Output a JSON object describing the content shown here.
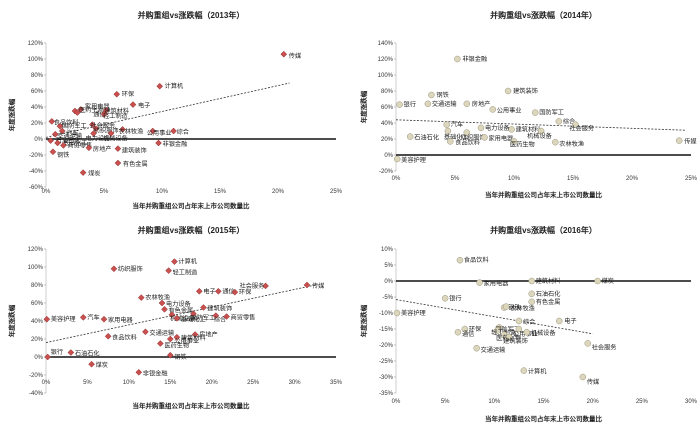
{
  "chart_data": [
    {
      "type": "scatter",
      "title": "并购重组vs涨跌幅（2013年）",
      "xlabel": "当年并购重组公司占年末上市公司数量比",
      "ylabel": "年度涨跌幅",
      "xlim": [
        0,
        0.25
      ],
      "ylim": [
        -0.6,
        1.2
      ],
      "xticks": [
        0,
        0.05,
        0.1,
        0.15,
        0.2,
        0.25
      ],
      "xtick_labels": [
        "0%",
        "5%",
        "10%",
        "15%",
        "20%",
        "25%"
      ],
      "yticks": [
        -0.6,
        -0.4,
        -0.2,
        0,
        0.2,
        0.4,
        0.6,
        0.8,
        1.0,
        1.2
      ],
      "ytick_labels": [
        "-60%",
        "-40%",
        "-20%",
        "0%",
        "20%",
        "40%",
        "60%",
        "80%",
        "100%",
        "120%"
      ],
      "marker": "diamond",
      "marker_color": "#c9504f",
      "trendline": [
        [
          0.0,
          0.02
        ],
        [
          0.21,
          0.7
        ]
      ],
      "points": [
        {
          "label": "传媒",
          "x": 0.205,
          "y": 1.06
        },
        {
          "label": "计算机",
          "x": 0.098,
          "y": 0.66
        },
        {
          "label": "环保",
          "x": 0.061,
          "y": 0.56
        },
        {
          "label": "电子",
          "x": 0.075,
          "y": 0.43
        },
        {
          "label": "家用电器",
          "x": 0.03,
          "y": 0.37
        },
        {
          "label": "医药生物",
          "x": 0.025,
          "y": 0.35
        },
        {
          "label": "通信",
          "x": 0.027,
          "y": 0.33
        },
        {
          "label": "建筑材料",
          "x": 0.052,
          "y": 0.36
        },
        {
          "label": "轻工制造",
          "x": 0.05,
          "y": 0.31
        },
        {
          "label": "食品饮料",
          "x": 0.005,
          "y": 0.22
        },
        {
          "label": "国防军工",
          "x": 0.012,
          "y": 0.16
        },
        {
          "label": "汽车",
          "x": 0.014,
          "y": 0.1
        },
        {
          "label": "交通运输",
          "x": 0.008,
          "y": 0.06
        },
        {
          "label": "社会服务",
          "x": 0.04,
          "y": 0.18
        },
        {
          "label": "纺织服饰",
          "x": 0.043,
          "y": 0.13
        },
        {
          "label": "农林牧渔",
          "x": 0.066,
          "y": 0.12
        },
        {
          "label": "公用事业",
          "x": 0.092,
          "y": 0.1
        },
        {
          "label": "综合",
          "x": 0.11,
          "y": 0.1
        },
        {
          "label": "电力设备",
          "x": 0.041,
          "y": 0.07
        },
        {
          "label": "机械设备",
          "x": 0.056,
          "y": 0.07
        },
        {
          "label": "石油石化",
          "x": 0.004,
          "y": -0.02
        },
        {
          "label": "基础化工",
          "x": 0.01,
          "y": -0.05
        },
        {
          "label": "商贸零售",
          "x": 0.015,
          "y": -0.08
        },
        {
          "label": "钢铁",
          "x": 0.006,
          "y": -0.16
        },
        {
          "label": "非银金融",
          "x": 0.097,
          "y": -0.05
        },
        {
          "label": "房地产",
          "x": 0.037,
          "y": -0.11
        },
        {
          "label": "建筑装饰",
          "x": 0.062,
          "y": -0.12
        },
        {
          "label": "有色金属",
          "x": 0.062,
          "y": -0.3
        },
        {
          "label": "煤炭",
          "x": 0.032,
          "y": -0.42
        }
      ]
    },
    {
      "type": "scatter",
      "title": "并购重组vs涨跌幅（2014年）",
      "xlabel": "当年并购重组公司占年末上市公司数量比",
      "ylabel": "年度涨跌幅",
      "xlim": [
        0,
        0.25
      ],
      "ylim": [
        -0.2,
        1.4
      ],
      "xticks": [
        0,
        0.05,
        0.1,
        0.15,
        0.2,
        0.25
      ],
      "xtick_labels": [
        "0%",
        "5%",
        "10%",
        "15%",
        "20%",
        "25%"
      ],
      "yticks": [
        -0.2,
        0,
        0.2,
        0.4,
        0.6,
        0.8,
        1.0,
        1.2,
        1.4
      ],
      "ytick_labels": [
        "-20%",
        "0%",
        "20%",
        "40%",
        "60%",
        "80%",
        "100%",
        "120%",
        "140%"
      ],
      "marker": "circle",
      "marker_color": "#dcd6bd",
      "trendline": [
        [
          0.0,
          0.44
        ],
        [
          0.245,
          0.31
        ]
      ],
      "points": [
        {
          "label": "非银金融",
          "x": 0.052,
          "y": 1.2
        },
        {
          "label": "建筑装饰",
          "x": 0.095,
          "y": 0.8
        },
        {
          "label": "钢铁",
          "x": 0.03,
          "y": 0.75
        },
        {
          "label": "银行",
          "x": 0.003,
          "y": 0.63
        },
        {
          "label": "交通运输",
          "x": 0.027,
          "y": 0.64
        },
        {
          "label": "房地产",
          "x": 0.06,
          "y": 0.64
        },
        {
          "label": "公用事业",
          "x": 0.082,
          "y": 0.57
        },
        {
          "label": "国防军工",
          "x": 0.118,
          "y": 0.53
        },
        {
          "label": "综合",
          "x": 0.138,
          "y": 0.42
        },
        {
          "label": "汽车",
          "x": 0.043,
          "y": 0.38
        },
        {
          "label": "社会服务",
          "x": 0.152,
          "y": 0.38
        },
        {
          "label": "电力设备",
          "x": 0.072,
          "y": 0.34
        },
        {
          "label": "建筑材料",
          "x": 0.098,
          "y": 0.32
        },
        {
          "label": "基础化工",
          "x": 0.044,
          "y": 0.3
        },
        {
          "label": "机械设备",
          "x": 0.123,
          "y": 0.3
        },
        {
          "label": "纺织服饰",
          "x": 0.06,
          "y": 0.28
        },
        {
          "label": "石油石化",
          "x": 0.012,
          "y": 0.23
        },
        {
          "label": "家用电器",
          "x": 0.075,
          "y": 0.22
        },
        {
          "label": "食品饮料",
          "x": 0.046,
          "y": 0.17
        },
        {
          "label": "医药生物",
          "x": 0.1,
          "y": 0.17
        },
        {
          "label": "农林牧渔",
          "x": 0.135,
          "y": 0.16
        },
        {
          "label": "传媒",
          "x": 0.24,
          "y": 0.18
        },
        {
          "label": "美容护理",
          "x": 0.001,
          "y": -0.05
        }
      ]
    },
    {
      "type": "scatter",
      "title": "并购重组vs涨跌幅（2015年）",
      "xlabel": "当年并购重组公司占年末上市公司数量比",
      "ylabel": "年度涨跌幅",
      "xlim": [
        0,
        0.35
      ],
      "ylim": [
        -0.4,
        1.2
      ],
      "xticks": [
        0,
        0.05,
        0.1,
        0.15,
        0.2,
        0.25,
        0.3,
        0.35
      ],
      "xtick_labels": [
        "0%",
        "5%",
        "10%",
        "15%",
        "20%",
        "25%",
        "30%",
        "35%"
      ],
      "yticks": [
        -0.4,
        -0.2,
        0,
        0.2,
        0.4,
        0.6,
        0.8,
        1.0,
        1.2
      ],
      "ytick_labels": [
        "-40%",
        "-20%",
        "0%",
        "20%",
        "40%",
        "60%",
        "80%",
        "100%",
        "120%"
      ],
      "marker": "diamond",
      "marker_color": "#c9504f",
      "trendline": [
        [
          0.0,
          0.16
        ],
        [
          0.325,
          0.8
        ]
      ],
      "points": [
        {
          "label": "计算机",
          "x": 0.155,
          "y": 1.06
        },
        {
          "label": "纺织服饰",
          "x": 0.082,
          "y": 0.98
        },
        {
          "label": "轻工制造",
          "x": 0.148,
          "y": 0.96
        },
        {
          "label": "传媒",
          "x": 0.315,
          "y": 0.8
        },
        {
          "label": "社会服务",
          "x": 0.265,
          "y": 0.79
        },
        {
          "label": "电子",
          "x": 0.185,
          "y": 0.73
        },
        {
          "label": "通信",
          "x": 0.208,
          "y": 0.73
        },
        {
          "label": "环保",
          "x": 0.228,
          "y": 0.72
        },
        {
          "label": "农林牧渔",
          "x": 0.115,
          "y": 0.66
        },
        {
          "label": "电力设备",
          "x": 0.14,
          "y": 0.6
        },
        {
          "label": "建筑装饰",
          "x": 0.19,
          "y": 0.55
        },
        {
          "label": "有色金属",
          "x": 0.143,
          "y": 0.53
        },
        {
          "label": "机械设备",
          "x": 0.152,
          "y": 0.47
        },
        {
          "label": "国防军工",
          "x": 0.178,
          "y": 0.48
        },
        {
          "label": "综合",
          "x": 0.205,
          "y": 0.46
        },
        {
          "label": "商贸零售",
          "x": 0.218,
          "y": 0.45
        },
        {
          "label": "美容护理",
          "x": 0.001,
          "y": 0.42
        },
        {
          "label": "汽车",
          "x": 0.045,
          "y": 0.44
        },
        {
          "label": "家用电器",
          "x": 0.07,
          "y": 0.42
        },
        {
          "label": "基础化工",
          "x": 0.158,
          "y": 0.43
        },
        {
          "label": "交通运输",
          "x": 0.12,
          "y": 0.28
        },
        {
          "label": "房地产",
          "x": 0.18,
          "y": 0.25
        },
        {
          "label": "食品饮料",
          "x": 0.075,
          "y": 0.23
        },
        {
          "label": "建筑材料",
          "x": 0.158,
          "y": 0.22
        },
        {
          "label": "公用事业",
          "x": 0.15,
          "y": 0.2
        },
        {
          "label": "医药生物",
          "x": 0.138,
          "y": 0.15
        },
        {
          "label": "石油石化",
          "x": 0.03,
          "y": 0.05
        },
        {
          "label": "钢铁",
          "x": 0.15,
          "y": 0.02
        },
        {
          "label": "银行",
          "x": 0.002,
          "y": 0.0
        },
        {
          "label": "煤炭",
          "x": 0.055,
          "y": -0.08
        },
        {
          "label": "非银金融",
          "x": 0.112,
          "y": -0.17
        }
      ]
    },
    {
      "type": "scatter",
      "title": "并购重组vs涨跌幅（2016年）",
      "xlabel": "当年并购重组公司占年末上市公司数量比",
      "ylabel": "年度涨跌幅",
      "xlim": [
        0,
        0.3
      ],
      "ylim": [
        -0.35,
        0.1
      ],
      "xticks": [
        0,
        0.05,
        0.1,
        0.15,
        0.2,
        0.25,
        0.3
      ],
      "xtick_labels": [
        "0%",
        "5%",
        "10%",
        "15%",
        "20%",
        "25%",
        "30%"
      ],
      "yticks": [
        -0.35,
        -0.3,
        -0.25,
        -0.2,
        -0.15,
        -0.1,
        -0.05,
        0,
        0.05,
        0.1
      ],
      "ytick_labels": [
        "-35%",
        "-30%",
        "-25%",
        "-20%",
        "-15%",
        "-10%",
        "-5%",
        "0%",
        "5%",
        "10%"
      ],
      "marker": "circle",
      "marker_color": "#dcd6bd",
      "trendline": [
        [
          0.0,
          -0.058
        ],
        [
          0.2,
          -0.165
        ]
      ],
      "points": [
        {
          "label": "食品饮料",
          "x": 0.065,
          "y": 0.065
        },
        {
          "label": "建筑材料",
          "x": 0.138,
          "y": 0.0
        },
        {
          "label": "煤炭",
          "x": 0.205,
          "y": 0.0
        },
        {
          "label": "家用电器",
          "x": 0.085,
          "y": -0.005
        },
        {
          "label": "石油石化",
          "x": 0.138,
          "y": -0.04
        },
        {
          "label": "银行",
          "x": 0.05,
          "y": -0.054
        },
        {
          "label": "有色金属",
          "x": 0.138,
          "y": -0.065
        },
        {
          "label": "钢铁",
          "x": 0.11,
          "y": -0.083
        },
        {
          "label": "农林牧渔",
          "x": 0.112,
          "y": -0.08
        },
        {
          "label": "美容护理",
          "x": 0.001,
          "y": -0.1
        },
        {
          "label": "综合",
          "x": 0.125,
          "y": -0.125
        },
        {
          "label": "电子",
          "x": 0.166,
          "y": -0.125
        },
        {
          "label": "环保",
          "x": 0.07,
          "y": -0.15
        },
        {
          "label": "通信",
          "x": 0.063,
          "y": -0.16
        },
        {
          "label": "国防军工",
          "x": 0.105,
          "y": -0.145
        },
        {
          "label": "轻工制造",
          "x": 0.103,
          "y": -0.155
        },
        {
          "label": "公用事业",
          "x": 0.125,
          "y": -0.15
        },
        {
          "label": "机械设备",
          "x": 0.133,
          "y": -0.16
        },
        {
          "label": "社会服务",
          "x": 0.195,
          "y": -0.195
        },
        {
          "label": "医药生物",
          "x": 0.11,
          "y": -0.168
        },
        {
          "label": "建筑装饰",
          "x": 0.115,
          "y": -0.175
        },
        {
          "label": "交通运输",
          "x": 0.082,
          "y": -0.21
        },
        {
          "label": "计算机",
          "x": 0.13,
          "y": -0.28
        },
        {
          "label": "传媒",
          "x": 0.19,
          "y": -0.3
        }
      ]
    }
  ]
}
